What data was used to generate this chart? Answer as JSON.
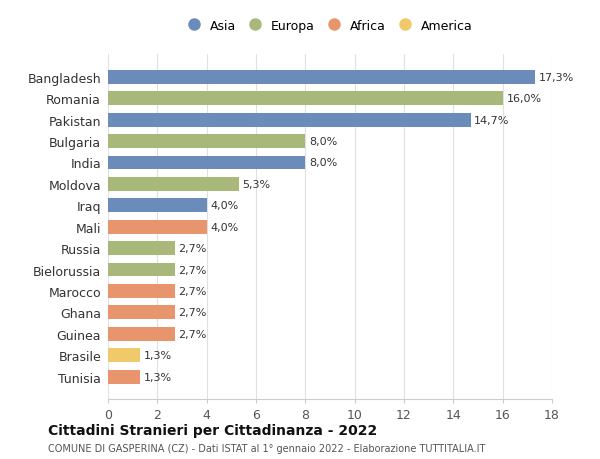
{
  "categories": [
    "Bangladesh",
    "Romania",
    "Pakistan",
    "Bulgaria",
    "India",
    "Moldova",
    "Iraq",
    "Mali",
    "Russia",
    "Bielorussia",
    "Marocco",
    "Ghana",
    "Guinea",
    "Brasile",
    "Tunisia"
  ],
  "values": [
    17.3,
    16.0,
    14.7,
    8.0,
    8.0,
    5.3,
    4.0,
    4.0,
    2.7,
    2.7,
    2.7,
    2.7,
    2.7,
    1.3,
    1.3
  ],
  "labels": [
    "17,3%",
    "16,0%",
    "14,7%",
    "8,0%",
    "8,0%",
    "5,3%",
    "4,0%",
    "4,0%",
    "2,7%",
    "2,7%",
    "2,7%",
    "2,7%",
    "2,7%",
    "1,3%",
    "1,3%"
  ],
  "continent": [
    "Asia",
    "Europa",
    "Asia",
    "Europa",
    "Asia",
    "Europa",
    "Asia",
    "Africa",
    "Europa",
    "Europa",
    "Africa",
    "Africa",
    "Africa",
    "America",
    "Africa"
  ],
  "colors": {
    "Asia": "#6b8cba",
    "Europa": "#a8b87a",
    "Africa": "#e8956d",
    "America": "#f0c96a"
  },
  "legend_order": [
    "Asia",
    "Europa",
    "Africa",
    "America"
  ],
  "title": "Cittadini Stranieri per Cittadinanza - 2022",
  "subtitle": "COMUNE DI GASPERINA (CZ) - Dati ISTAT al 1° gennaio 2022 - Elaborazione TUTTITALIA.IT",
  "xlim": [
    0,
    18
  ],
  "xticks": [
    0,
    2,
    4,
    6,
    8,
    10,
    12,
    14,
    16,
    18
  ],
  "background_color": "#ffffff",
  "grid_color": "#e0e0e0",
  "bar_height": 0.65
}
